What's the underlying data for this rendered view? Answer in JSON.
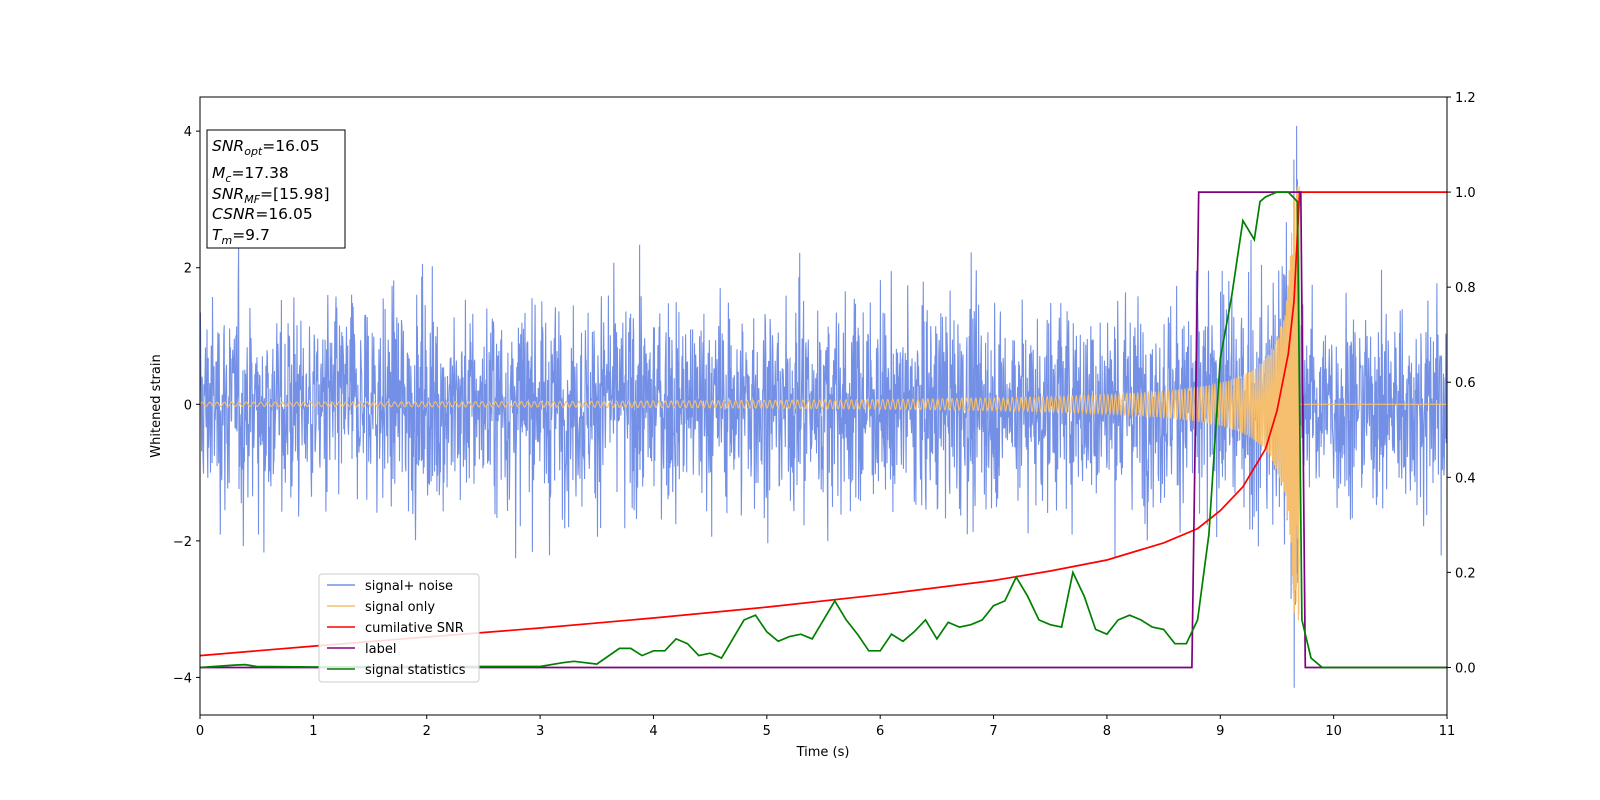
{
  "chart_data": {
    "type": "line",
    "xlabel": "Time (s)",
    "ylabel": "Whitened strain",
    "xlim": [
      0,
      11
    ],
    "ylim_left": [
      -4.55,
      4.5
    ],
    "ylim_right": [
      -0.1,
      1.2
    ],
    "x_ticks": [
      "0",
      "1",
      "2",
      "3",
      "4",
      "5",
      "6",
      "7",
      "8",
      "9",
      "10",
      "11"
    ],
    "y_ticks_left": [
      "4",
      "2",
      "0",
      "−2",
      "−4"
    ],
    "y_ticks_right": [
      "1.2",
      "1.0",
      "0.8",
      "0.6",
      "0.4",
      "0.2",
      "0.0"
    ],
    "grid": false,
    "legend_position": "lower-left",
    "info_box": {
      "snr_opt": {
        "main": "SNR",
        "sub": "opt",
        "value": "=16.05"
      },
      "mc": {
        "main": "M",
        "sub": "c",
        "value": "=17.38"
      },
      "snr_mf": {
        "main": "SNR",
        "sub": "MF",
        "value": "=[15.98]"
      },
      "csnr": {
        "main": "CSNR",
        "value": "=16.05"
      },
      "tm": {
        "main": "T",
        "sub": "m",
        "value": "=9.7"
      }
    },
    "series": [
      {
        "name": "signal+ noise",
        "axis": "left",
        "color": "#7390e6",
        "description_values": "noise band roughly between -2.7 and 2.7 with spikes up to about 4.1",
        "envelope_max": 4.1,
        "envelope_min": -4.15
      },
      {
        "name": "signal only",
        "axis": "left",
        "color": "#f5bf6f",
        "chirp": {
          "start_amp": 0.03,
          "merger_time": 9.7,
          "peak_amp": 3.2
        }
      },
      {
        "name": "cumilative SNR",
        "axis": "right",
        "color": "#ff0000",
        "x": [
          0,
          1,
          2,
          3,
          4,
          5,
          6,
          7,
          7.5,
          8,
          8.5,
          8.8,
          9.0,
          9.2,
          9.4,
          9.5,
          9.6,
          9.65,
          9.7,
          11
        ],
        "values": [
          0.025,
          0.045,
          0.064,
          0.083,
          0.104,
          0.127,
          0.153,
          0.183,
          0.203,
          0.226,
          0.262,
          0.292,
          0.33,
          0.38,
          0.46,
          0.54,
          0.66,
          0.77,
          1.0,
          1.0
        ]
      },
      {
        "name": "label",
        "axis": "right",
        "color": "#800080",
        "x": [
          0,
          8.75,
          8.81,
          9.71,
          9.75,
          11
        ],
        "values": [
          0.0,
          0.0,
          1.0,
          1.0,
          0.0,
          0.0
        ]
      },
      {
        "name": "signal statistics",
        "axis": "right",
        "color": "#008000",
        "x": [
          0,
          0.3,
          0.4,
          0.5,
          1.0,
          2.0,
          2.5,
          3.0,
          3.2,
          3.3,
          3.5,
          3.7,
          3.8,
          3.9,
          4.0,
          4.1,
          4.2,
          4.3,
          4.4,
          4.5,
          4.6,
          4.7,
          4.8,
          4.9,
          5.0,
          5.1,
          5.2,
          5.3,
          5.4,
          5.5,
          5.6,
          5.7,
          5.8,
          5.9,
          6.0,
          6.1,
          6.2,
          6.3,
          6.4,
          6.5,
          6.6,
          6.7,
          6.8,
          6.9,
          7.0,
          7.1,
          7.2,
          7.3,
          7.4,
          7.5,
          7.6,
          7.7,
          7.8,
          7.9,
          8.0,
          8.1,
          8.2,
          8.3,
          8.4,
          8.5,
          8.6,
          8.7,
          8.8,
          8.9,
          9.0,
          9.1,
          9.2,
          9.3,
          9.35,
          9.4,
          9.5,
          9.6,
          9.68,
          9.72,
          9.8,
          9.9,
          10.0,
          11.0
        ],
        "values": [
          0.0,
          0.005,
          0.006,
          0.002,
          0.001,
          0.002,
          0.002,
          0.002,
          0.01,
          0.013,
          0.007,
          0.04,
          0.04,
          0.025,
          0.035,
          0.035,
          0.06,
          0.05,
          0.025,
          0.03,
          0.02,
          0.06,
          0.1,
          0.11,
          0.075,
          0.055,
          0.065,
          0.07,
          0.06,
          0.1,
          0.14,
          0.1,
          0.07,
          0.035,
          0.035,
          0.07,
          0.055,
          0.075,
          0.1,
          0.06,
          0.095,
          0.085,
          0.09,
          0.1,
          0.13,
          0.14,
          0.19,
          0.15,
          0.1,
          0.09,
          0.085,
          0.2,
          0.15,
          0.08,
          0.07,
          0.1,
          0.11,
          0.1,
          0.085,
          0.08,
          0.05,
          0.05,
          0.1,
          0.28,
          0.65,
          0.78,
          0.94,
          0.9,
          0.98,
          0.99,
          1.0,
          1.0,
          0.98,
          0.1,
          0.02,
          0.0,
          0.0,
          0.0
        ]
      }
    ]
  }
}
